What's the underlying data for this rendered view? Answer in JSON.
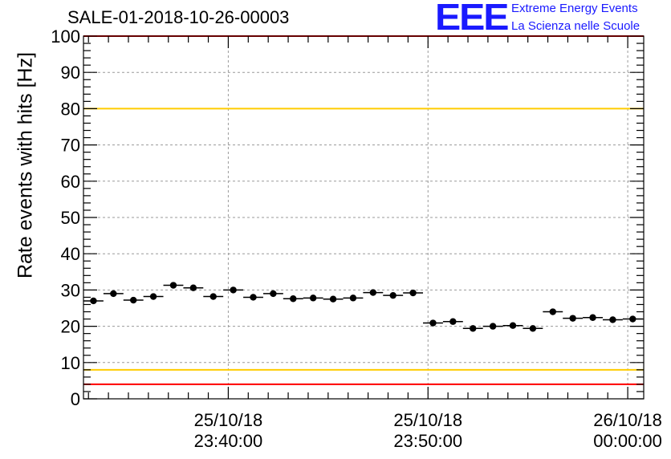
{
  "chart_data": {
    "type": "scatter",
    "title": "SALE-01-2018-10-26-00003",
    "ylabel": "Rate events with hits [Hz]",
    "xlabel": "",
    "ylim": [
      0,
      100
    ],
    "y_ticks": [
      "0",
      "10",
      "20",
      "30",
      "40",
      "50",
      "60",
      "70",
      "80",
      "90",
      "100"
    ],
    "x_ticks": [
      {
        "x": 0,
        "date": "25/10/18",
        "time": "23:40:00"
      },
      {
        "x": 10,
        "date": "25/10/18",
        "time": "23:50:00"
      },
      {
        "x": 20,
        "date": "26/10/18",
        "time": "00:00:00"
      }
    ],
    "x_unit": "minutes relative to 25/10/18 23:40:00",
    "xlim": [
      -7.25,
      20.8
    ],
    "grid": true,
    "reference_lines": [
      {
        "y": 100,
        "color": "#ff0000"
      },
      {
        "y": 80,
        "color": "#ffcc00"
      },
      {
        "y": 8,
        "color": "#ffcc00"
      },
      {
        "y": 4,
        "color": "#ff0000"
      }
    ],
    "marker_color": "#000000",
    "points": [
      {
        "x": -6.75,
        "y": 27.0
      },
      {
        "x": -5.75,
        "y": 29.0
      },
      {
        "x": -4.75,
        "y": 27.2
      },
      {
        "x": -3.75,
        "y": 28.2
      },
      {
        "x": -2.75,
        "y": 31.3
      },
      {
        "x": -1.75,
        "y": 30.6
      },
      {
        "x": -0.75,
        "y": 28.2
      },
      {
        "x": 0.25,
        "y": 30.0
      },
      {
        "x": 1.25,
        "y": 28.0
      },
      {
        "x": 2.25,
        "y": 29.0
      },
      {
        "x": 3.25,
        "y": 27.6
      },
      {
        "x": 4.25,
        "y": 27.8
      },
      {
        "x": 5.25,
        "y": 27.5
      },
      {
        "x": 6.25,
        "y": 27.8
      },
      {
        "x": 7.25,
        "y": 29.3
      },
      {
        "x": 8.25,
        "y": 28.5
      },
      {
        "x": 9.25,
        "y": 29.2
      },
      {
        "x": 10.25,
        "y": 20.9
      },
      {
        "x": 11.25,
        "y": 21.3
      },
      {
        "x": 12.25,
        "y": 19.4
      },
      {
        "x": 13.25,
        "y": 20.0
      },
      {
        "x": 14.25,
        "y": 20.2
      },
      {
        "x": 15.25,
        "y": 19.4
      },
      {
        "x": 16.25,
        "y": 24.0
      },
      {
        "x": 17.25,
        "y": 22.2
      },
      {
        "x": 18.25,
        "y": 22.4
      },
      {
        "x": 19.25,
        "y": 21.8
      },
      {
        "x": 20.25,
        "y": 22.0
      }
    ]
  },
  "logo": {
    "mark": "EEE",
    "line1": "Extreme Energy Events",
    "line2": "La Scienza nelle Scuole"
  }
}
